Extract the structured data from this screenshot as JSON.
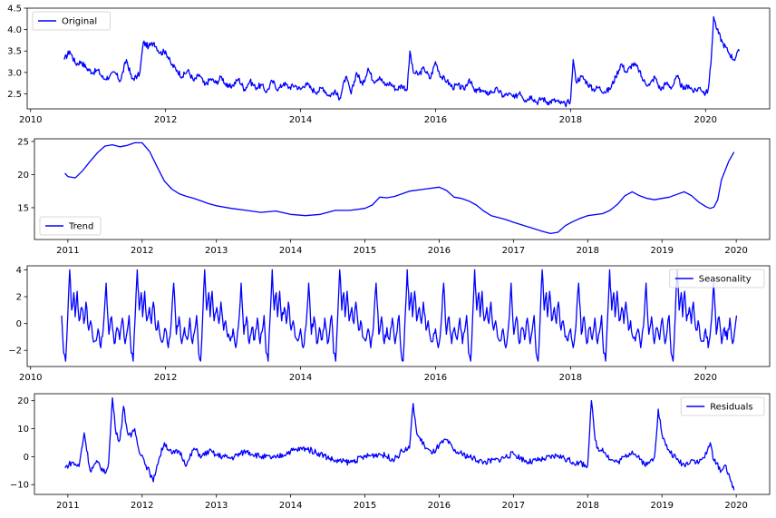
{
  "chart_data": [
    {
      "type": "line",
      "title": "",
      "xlabel": "",
      "ylabel": "",
      "xlim": [
        2009.95,
        2020.95
      ],
      "ylim": [
        2.15,
        4.5
      ],
      "xticks": [
        2010,
        2012,
        2014,
        2016,
        2018,
        2020
      ],
      "yticks": [
        2.5,
        3.0,
        3.5,
        4.0,
        4.5
      ],
      "ytick_labels": [
        "2.5",
        "3.0",
        "3.5",
        "4.0",
        "4.5"
      ],
      "legend_position": "upper-left",
      "grid": false,
      "series": [
        {
          "name": "Original",
          "color": "#0000ff",
          "x": [
            2010.5,
            2010.58,
            2010.67,
            2010.75,
            2010.83,
            2010.92,
            2011.0,
            2011.08,
            2011.17,
            2011.25,
            2011.33,
            2011.42,
            2011.5,
            2011.58,
            2011.62,
            2011.67,
            2011.75,
            2011.83,
            2011.92,
            2012.0,
            2012.08,
            2012.17,
            2012.25,
            2012.33,
            2012.42,
            2012.5,
            2012.58,
            2012.67,
            2012.75,
            2012.83,
            2012.92,
            2013.0,
            2013.08,
            2013.17,
            2013.25,
            2013.33,
            2013.42,
            2013.5,
            2013.58,
            2013.67,
            2013.75,
            2013.83,
            2013.92,
            2014.0,
            2014.08,
            2014.17,
            2014.25,
            2014.33,
            2014.42,
            2014.5,
            2014.58,
            2014.67,
            2014.75,
            2014.83,
            2014.92,
            2015.0,
            2015.08,
            2015.17,
            2015.25,
            2015.33,
            2015.42,
            2015.5,
            2015.58,
            2015.62,
            2015.67,
            2015.75,
            2015.83,
            2015.92,
            2016.0,
            2016.08,
            2016.17,
            2016.25,
            2016.33,
            2016.42,
            2016.5,
            2016.58,
            2016.67,
            2016.75,
            2016.83,
            2016.92,
            2017.0,
            2017.08,
            2017.17,
            2017.25,
            2017.33,
            2017.42,
            2017.5,
            2017.58,
            2017.67,
            2017.75,
            2017.83,
            2017.92,
            2018.0,
            2018.04,
            2018.08,
            2018.17,
            2018.25,
            2018.33,
            2018.42,
            2018.5,
            2018.58,
            2018.67,
            2018.75,
            2018.83,
            2018.92,
            2019.0,
            2019.08,
            2019.17,
            2019.25,
            2019.33,
            2019.42,
            2019.5,
            2019.58,
            2019.67,
            2019.75,
            2019.83,
            2019.92,
            2020.0,
            2020.04,
            2020.08,
            2020.12,
            2020.17,
            2020.25,
            2020.33,
            2020.42,
            2020.5
          ],
          "y": [
            3.3,
            3.5,
            3.2,
            3.25,
            3.1,
            3.0,
            3.05,
            2.85,
            2.9,
            3.0,
            2.8,
            3.3,
            2.85,
            2.9,
            3.0,
            3.7,
            3.6,
            3.7,
            3.45,
            3.5,
            3.2,
            3.05,
            2.9,
            3.05,
            2.8,
            2.95,
            2.7,
            2.85,
            2.75,
            2.9,
            2.65,
            2.7,
            2.85,
            2.6,
            2.8,
            2.65,
            2.7,
            2.55,
            2.8,
            2.6,
            2.75,
            2.65,
            2.7,
            2.6,
            2.75,
            2.6,
            2.55,
            2.65,
            2.45,
            2.55,
            2.4,
            2.9,
            2.5,
            3.0,
            2.7,
            3.1,
            2.8,
            2.9,
            2.7,
            2.75,
            2.6,
            2.7,
            2.6,
            3.5,
            3.0,
            2.95,
            3.1,
            2.85,
            3.25,
            2.9,
            2.8,
            2.65,
            2.7,
            2.6,
            2.85,
            2.55,
            2.6,
            2.5,
            2.55,
            2.6,
            2.45,
            2.5,
            2.4,
            2.55,
            2.35,
            2.45,
            2.3,
            2.4,
            2.3,
            2.35,
            2.3,
            2.25,
            2.35,
            3.3,
            2.8,
            2.9,
            2.75,
            2.6,
            2.65,
            2.55,
            2.6,
            2.9,
            3.2,
            3.0,
            3.2,
            3.1,
            2.8,
            2.7,
            2.9,
            2.6,
            2.75,
            2.65,
            2.9,
            2.6,
            2.7,
            2.55,
            2.65,
            2.5,
            2.6,
            3.2,
            4.3,
            4.0,
            3.7,
            3.5,
            3.3,
            3.5
          ]
        }
      ]
    },
    {
      "type": "line",
      "title": "",
      "xlabel": "",
      "ylabel": "",
      "xlim": [
        2010.55,
        2020.45
      ],
      "ylim": [
        10.2,
        25.4
      ],
      "xticks": [
        2011,
        2012,
        2013,
        2014,
        2015,
        2016,
        2017,
        2018,
        2019,
        2020
      ],
      "yticks": [
        15,
        20,
        25
      ],
      "ytick_labels": [
        "15",
        "20",
        "25"
      ],
      "legend_position": "lower-left",
      "grid": false,
      "series": [
        {
          "name": "Trend",
          "color": "#0000ff",
          "x": [
            2010.96,
            2011.0,
            2011.1,
            2011.2,
            2011.3,
            2011.4,
            2011.5,
            2011.6,
            2011.7,
            2011.8,
            2011.9,
            2012.0,
            2012.1,
            2012.2,
            2012.3,
            2012.4,
            2012.5,
            2012.6,
            2012.7,
            2012.8,
            2012.9,
            2013.0,
            2013.2,
            2013.4,
            2013.6,
            2013.8,
            2014.0,
            2014.2,
            2014.4,
            2014.6,
            2014.8,
            2015.0,
            2015.1,
            2015.2,
            2015.3,
            2015.4,
            2015.6,
            2015.8,
            2016.0,
            2016.1,
            2016.2,
            2016.3,
            2016.4,
            2016.5,
            2016.6,
            2016.7,
            2016.8,
            2016.9,
            2017.0,
            2017.2,
            2017.4,
            2017.5,
            2017.6,
            2017.7,
            2017.8,
            2017.9,
            2018.0,
            2018.2,
            2018.3,
            2018.4,
            2018.5,
            2018.6,
            2018.7,
            2018.8,
            2018.9,
            2019.0,
            2019.1,
            2019.2,
            2019.3,
            2019.4,
            2019.5,
            2019.6,
            2019.65,
            2019.7,
            2019.75,
            2019.8,
            2019.9,
            2019.97
          ],
          "y": [
            20.2,
            19.7,
            19.5,
            20.6,
            22.0,
            23.3,
            24.3,
            24.5,
            24.2,
            24.4,
            24.8,
            24.8,
            23.5,
            21.2,
            19.0,
            17.8,
            17.1,
            16.7,
            16.4,
            16.0,
            15.6,
            15.3,
            14.9,
            14.6,
            14.3,
            14.5,
            14.0,
            13.8,
            14.0,
            14.6,
            14.6,
            14.9,
            15.4,
            16.6,
            16.5,
            16.7,
            17.5,
            17.8,
            18.1,
            17.6,
            16.6,
            16.4,
            16.0,
            15.4,
            14.5,
            13.8,
            13.5,
            13.2,
            12.8,
            12.1,
            11.4,
            11.1,
            11.3,
            12.3,
            12.9,
            13.4,
            13.8,
            14.1,
            14.6,
            15.5,
            16.8,
            17.4,
            16.8,
            16.4,
            16.2,
            16.4,
            16.6,
            17.0,
            17.4,
            16.8,
            15.8,
            15.1,
            14.9,
            15.1,
            16.2,
            19.2,
            22.0,
            23.4
          ]
        }
      ]
    },
    {
      "type": "line",
      "title": "",
      "xlabel": "",
      "ylabel": "",
      "xlim": [
        2009.95,
        2020.95
      ],
      "ylim": [
        -3.2,
        4.3
      ],
      "xticks": [
        2010,
        2012,
        2014,
        2016,
        2018,
        2020
      ],
      "yticks": [
        -2,
        0,
        2,
        4
      ],
      "ytick_labels": [
        "−2",
        "0",
        "2",
        "4"
      ],
      "legend_position": "upper-right",
      "grid": false,
      "series": [
        {
          "name": "Seasonality",
          "color": "#0000ff",
          "period": 1,
          "cycle_start": 2010.46,
          "x_end": 2020.48,
          "cycle_phase": [
            0.0,
            0.03,
            0.06,
            0.09,
            0.12,
            0.15,
            0.18,
            0.2,
            0.23,
            0.26,
            0.3,
            0.33,
            0.36,
            0.4,
            0.43,
            0.46,
            0.5,
            0.54,
            0.58,
            0.62,
            0.66,
            0.7,
            0.74,
            0.78,
            0.82,
            0.86,
            0.9,
            0.94,
            0.97
          ],
          "cycle_values": [
            0.6,
            -2.2,
            -2.8,
            0.5,
            4.0,
            1.0,
            2.3,
            0.5,
            2.4,
            0.2,
            1.2,
            0.0,
            1.6,
            -0.5,
            0.2,
            -1.0,
            -1.3,
            -0.4,
            -1.8,
            -0.2,
            3.0,
            -0.8,
            0.5,
            -1.5,
            -0.3,
            -1.2,
            0.4,
            -1.5,
            -0.6
          ]
        }
      ]
    },
    {
      "type": "line",
      "title": "",
      "xlabel": "",
      "ylabel": "",
      "xlim": [
        2010.55,
        2020.45
      ],
      "ylim": [
        -13.5,
        22.5
      ],
      "xticks": [
        2011,
        2012,
        2013,
        2014,
        2015,
        2016,
        2017,
        2018,
        2019,
        2020
      ],
      "yticks": [
        -10,
        0,
        10,
        20
      ],
      "ytick_labels": [
        "−10",
        "0",
        "10",
        "20"
      ],
      "legend_position": "upper-right",
      "grid": false,
      "series": [
        {
          "name": "Residuals",
          "color": "#0000ff",
          "x": [
            2010.96,
            2011.05,
            2011.15,
            2011.22,
            2011.3,
            2011.4,
            2011.5,
            2011.55,
            2011.6,
            2011.65,
            2011.7,
            2011.75,
            2011.8,
            2011.85,
            2011.9,
            2011.95,
            2012.0,
            2012.05,
            2012.1,
            2012.15,
            2012.2,
            2012.3,
            2012.4,
            2012.5,
            2012.6,
            2012.7,
            2012.8,
            2012.9,
            2013.0,
            2013.2,
            2013.4,
            2013.6,
            2013.8,
            2014.0,
            2014.2,
            2014.4,
            2014.6,
            2014.8,
            2015.0,
            2015.2,
            2015.4,
            2015.5,
            2015.6,
            2015.65,
            2015.7,
            2015.8,
            2015.9,
            2016.0,
            2016.1,
            2016.2,
            2016.4,
            2016.6,
            2016.8,
            2017.0,
            2017.2,
            2017.4,
            2017.6,
            2017.8,
            2018.0,
            2018.05,
            2018.1,
            2018.15,
            2018.2,
            2018.3,
            2018.4,
            2018.5,
            2018.6,
            2018.7,
            2018.8,
            2018.9,
            2018.95,
            2019.0,
            2019.05,
            2019.1,
            2019.2,
            2019.3,
            2019.4,
            2019.5,
            2019.6,
            2019.65,
            2019.7,
            2019.8,
            2019.85,
            2019.9,
            2019.95,
            2019.97
          ],
          "y": [
            -4.0,
            -2.0,
            -3.5,
            8.5,
            -5.0,
            -2.0,
            -6.0,
            -2.0,
            21.0,
            8.0,
            6.0,
            18.0,
            9.0,
            7.0,
            10.0,
            3.0,
            0.5,
            -3.0,
            -5.5,
            -9.0,
            -3.0,
            5.0,
            1.0,
            2.0,
            -3.0,
            3.0,
            0.0,
            2.0,
            0.5,
            -0.5,
            2.0,
            0.0,
            -0.5,
            2.0,
            3.0,
            1.0,
            -1.5,
            -2.0,
            0.0,
            1.0,
            -1.0,
            2.0,
            3.0,
            19.0,
            8.0,
            4.0,
            1.0,
            4.0,
            6.0,
            2.0,
            0.0,
            -2.0,
            -1.0,
            1.0,
            -2.0,
            -1.0,
            0.5,
            -2.0,
            -3.0,
            20.0,
            6.0,
            2.0,
            3.0,
            -1.0,
            -2.0,
            0.0,
            2.0,
            -1.0,
            -3.0,
            0.0,
            17.0,
            8.0,
            4.0,
            2.0,
            -1.0,
            -3.0,
            -1.0,
            -2.0,
            1.0,
            5.0,
            -1.5,
            -5.0,
            -3.0,
            -6.0,
            -11.0,
            -12.0
          ]
        }
      ]
    }
  ]
}
